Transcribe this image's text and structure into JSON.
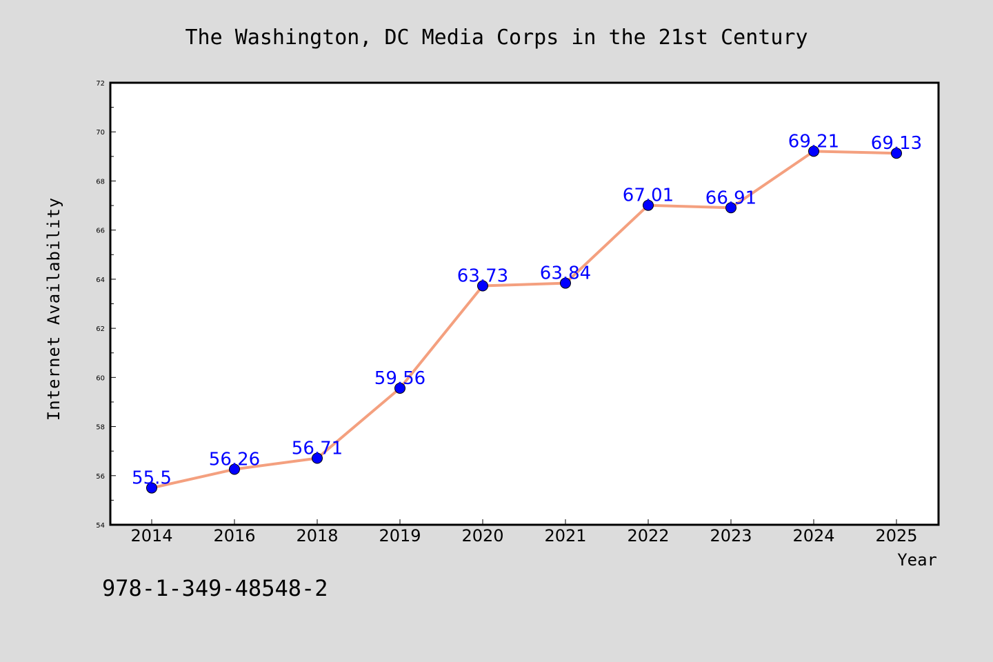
{
  "chart_data": {
    "type": "line",
    "title": "The Washington, DC Media Corps in the 21st Century",
    "xlabel": "Year",
    "ylabel": "Internet Availability",
    "categories": [
      "2014",
      "2016",
      "2018",
      "2019",
      "2020",
      "2021",
      "2022",
      "2023",
      "2024",
      "2025"
    ],
    "series": [
      {
        "values": [
          55.5,
          56.26,
          56.71,
          59.56,
          63.73,
          63.84,
          67.01,
          66.91,
          69.21,
          69.13
        ],
        "line_color": "#f4a07f",
        "marker_color": "#0000ff"
      }
    ],
    "data_labels": [
      "55.5",
      "56.26",
      "56.71",
      "59.56",
      "63.73",
      "63.84",
      "67.01",
      "66.91",
      "69.21",
      "69.13"
    ],
    "ylim": [
      54,
      72
    ],
    "yticks": [
      "54",
      "56",
      "58",
      "60",
      "62",
      "64",
      "66",
      "68",
      "70",
      "72"
    ],
    "grid": false,
    "legend": "none"
  },
  "footer": {
    "isbn": "978-1-349-48548-2"
  },
  "colors": {
    "background": "#dcdcdc",
    "plot_background": "#ffffff",
    "label_color": "#0000ff"
  }
}
